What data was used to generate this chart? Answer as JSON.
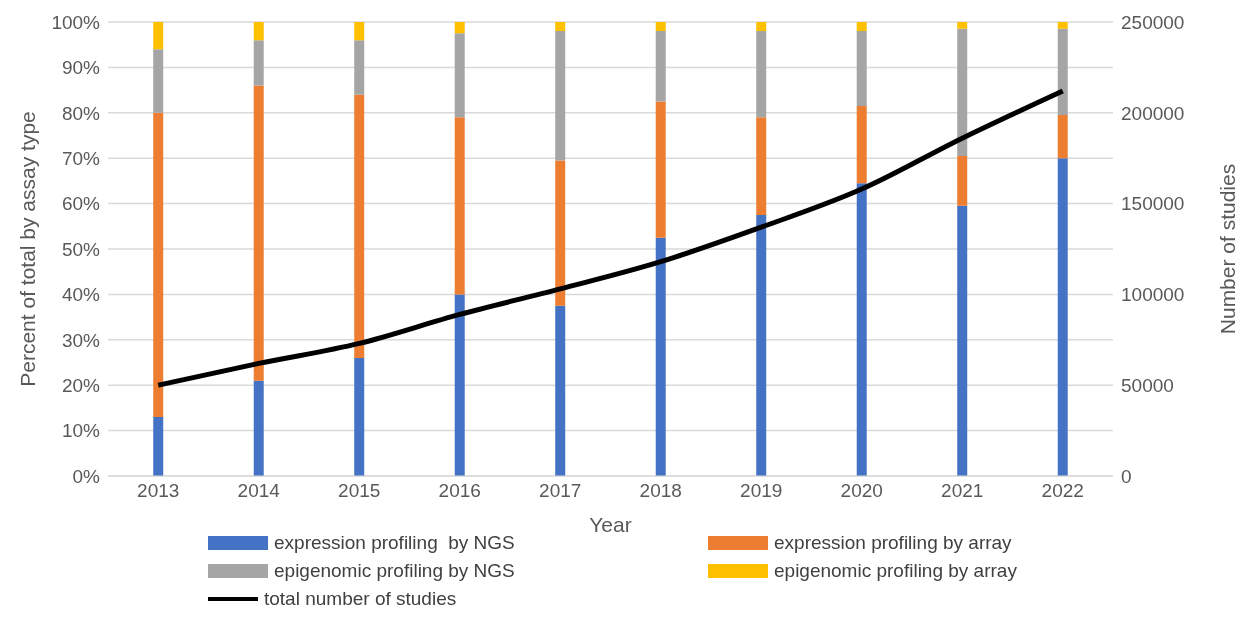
{
  "chart_data": {
    "type": "bar",
    "stacked": true,
    "xlabel": "Year",
    "ylabel": "Percent of total by assay type",
    "y2label": "Number of studies",
    "categories": [
      "2013",
      "2014",
      "2015",
      "2016",
      "2017",
      "2018",
      "2019",
      "2020",
      "2021",
      "2022"
    ],
    "series": [
      {
        "name": "expression profiling  by NGS",
        "color": "#4472c4",
        "values": [
          13,
          21,
          26,
          40,
          37.5,
          52.5,
          57.5,
          64.5,
          59.5,
          70
        ]
      },
      {
        "name": "expression profiling by array",
        "color": "#ed7d31",
        "values": [
          67,
          65,
          58,
          39,
          32,
          30,
          21.5,
          17,
          11,
          9.5
        ]
      },
      {
        "name": "epigenomic profiling by NGS",
        "color": "#a5a5a5",
        "values": [
          14,
          10,
          12,
          18.5,
          28.5,
          15.5,
          19,
          16.5,
          28,
          19
        ]
      },
      {
        "name": "epigenomic profiling by array",
        "color": "#ffc000",
        "values": [
          6,
          4,
          4,
          2.5,
          2,
          2,
          2,
          2,
          1.5,
          1.5
        ]
      },
      {
        "name": "total number of studies",
        "type": "line",
        "axis": "y2",
        "color": "#000000",
        "marker": "none",
        "values": [
          50000,
          62000,
          73000,
          89000,
          103000,
          118000,
          137000,
          158000,
          186000,
          212000
        ]
      }
    ],
    "ylim": [
      0,
      100
    ],
    "yticks": [
      {
        "value": 0,
        "label": "0%"
      },
      {
        "value": 10,
        "label": "10%"
      },
      {
        "value": 20,
        "label": "20%"
      },
      {
        "value": 30,
        "label": "30%"
      },
      {
        "value": 40,
        "label": "40%"
      },
      {
        "value": 50,
        "label": "50%"
      },
      {
        "value": 60,
        "label": "60%"
      },
      {
        "value": 70,
        "label": "70%"
      },
      {
        "value": 80,
        "label": "80%"
      },
      {
        "value": 90,
        "label": "90%"
      },
      {
        "value": 100,
        "label": "100%"
      }
    ],
    "y2lim": [
      0,
      250000
    ],
    "y2ticks": [
      0,
      50000,
      100000,
      150000,
      200000,
      250000
    ],
    "grid": "y",
    "legend": "bottom"
  }
}
